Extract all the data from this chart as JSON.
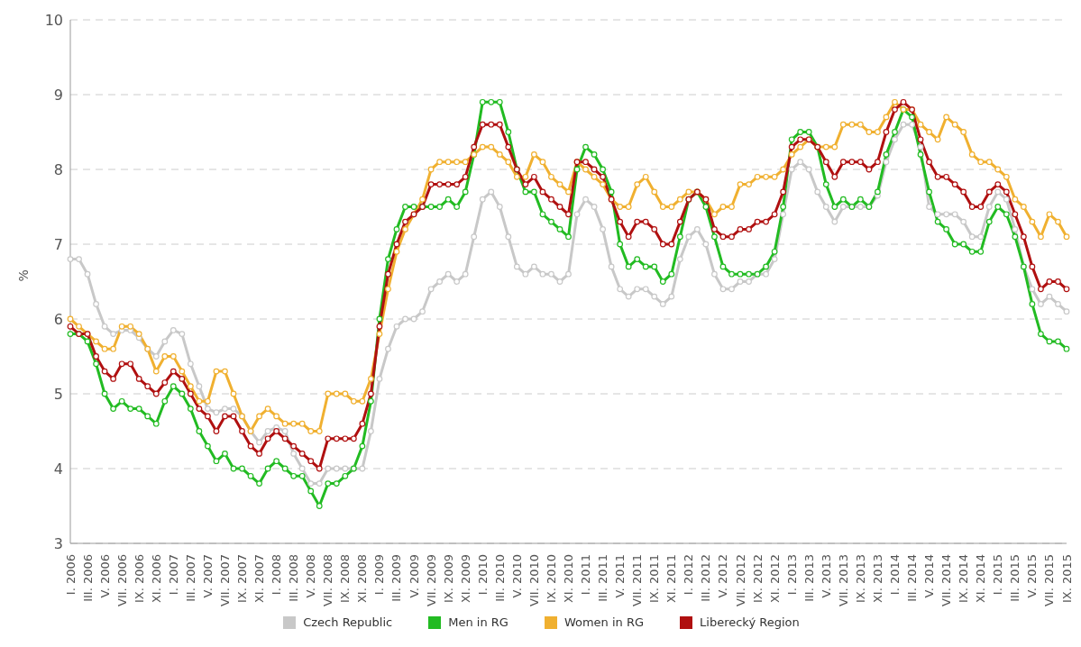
{
  "chart_data": {
    "type": "line",
    "ylabel": "%",
    "ylim": [
      3,
      10
    ],
    "yticks": [
      3,
      4,
      5,
      6,
      7,
      8,
      9,
      10
    ],
    "grid": "y",
    "legend": "bottom",
    "marker": "circle",
    "line_style": "solid",
    "categories": [
      "I. 2006",
      null,
      "III. 2006",
      null,
      "V. 2006",
      null,
      "VII. 2006",
      null,
      "IX. 2006",
      null,
      "XI. 2006",
      null,
      "I. 2007",
      null,
      "III. 2007",
      null,
      "V. 2007",
      null,
      "VII. 2007",
      null,
      "IX. 2007",
      null,
      "XI. 2007",
      null,
      "I. 2008",
      null,
      "III. 2008",
      null,
      "V. 2008",
      null,
      "VII. 2008",
      null,
      "IX. 2008",
      null,
      "XI. 2008",
      null,
      "I. 2009",
      null,
      "III. 2009",
      null,
      "V. 2009",
      null,
      "VII. 2009",
      null,
      "IX. 2009",
      null,
      "XI. 2009",
      null,
      "I. 2010",
      null,
      "III. 2010",
      null,
      "V. 2010",
      null,
      "VII. 2010",
      null,
      "IX. 2010",
      null,
      "XI. 2010",
      null,
      "I. 2011",
      null,
      "III. 2011",
      null,
      "V. 2011",
      null,
      "VII. 2011",
      null,
      "IX. 2011",
      null,
      "XI. 2011",
      null,
      "I. 2012",
      null,
      "III. 2012",
      null,
      "V. 2012",
      null,
      "VII. 2012",
      null,
      "IX. 2012",
      null,
      "XI. 2012",
      null,
      "I. 2013",
      null,
      "III. 2013",
      null,
      "V. 2013",
      null,
      "VII. 2013",
      null,
      "IX. 2013",
      null,
      "XI. 2013",
      null,
      "I. 2014",
      null,
      "III. 2014",
      null,
      "V. 2014",
      null,
      "VII. 2014",
      null,
      "IX. 2014",
      null,
      "XI. 2014",
      null,
      "I. 2015",
      null,
      "III. 2015",
      null,
      "V. 2015",
      null,
      "VII. 2015",
      null,
      "IX. 2015"
    ],
    "series": [
      {
        "name": "Czech Republic",
        "color": "#c8c8c8",
        "values": [
          6.8,
          6.8,
          6.6,
          6.2,
          5.9,
          5.8,
          5.85,
          5.85,
          5.75,
          5.6,
          5.5,
          5.7,
          5.85,
          5.8,
          5.4,
          5.1,
          4.8,
          4.75,
          4.8,
          4.8,
          4.7,
          4.5,
          4.35,
          4.5,
          4.55,
          4.5,
          4.2,
          4.0,
          3.8,
          3.8,
          4.0,
          4.0,
          4.0,
          4.0,
          4.0,
          4.5,
          5.2,
          5.6,
          5.9,
          6.0,
          6.0,
          6.1,
          6.4,
          6.5,
          6.6,
          6.5,
          6.6,
          7.1,
          7.6,
          7.7,
          7.5,
          7.1,
          6.7,
          6.6,
          6.7,
          6.6,
          6.6,
          6.5,
          6.6,
          7.4,
          7.6,
          7.5,
          7.2,
          6.7,
          6.4,
          6.3,
          6.4,
          6.4,
          6.3,
          6.2,
          6.3,
          6.8,
          7.1,
          7.2,
          7.0,
          6.6,
          6.4,
          6.4,
          6.5,
          6.5,
          6.6,
          6.6,
          6.8,
          7.4,
          8.0,
          8.1,
          8.0,
          7.7,
          7.5,
          7.3,
          7.5,
          7.5,
          7.5,
          7.5,
          7.65,
          8.1,
          8.4,
          8.6,
          8.6,
          8.3,
          7.5,
          7.4,
          7.4,
          7.4,
          7.3,
          7.1,
          7.1,
          7.5,
          7.7,
          7.6,
          7.2,
          6.7,
          6.4,
          6.2,
          6.3,
          6.2,
          6.1
        ]
      },
      {
        "name": "Men in RG",
        "color": "#22bb22",
        "values": [
          5.8,
          5.8,
          5.7,
          5.4,
          5.0,
          4.8,
          4.9,
          4.8,
          4.8,
          4.7,
          4.6,
          4.9,
          5.1,
          5.0,
          4.8,
          4.5,
          4.3,
          4.1,
          4.2,
          4.0,
          4.0,
          3.9,
          3.8,
          4.0,
          4.1,
          4.0,
          3.9,
          3.9,
          3.7,
          3.5,
          3.8,
          3.8,
          3.9,
          4.0,
          4.3,
          4.9,
          6.0,
          6.8,
          7.2,
          7.5,
          7.5,
          7.5,
          7.5,
          7.5,
          7.6,
          7.5,
          7.7,
          8.2,
          8.9,
          8.9,
          8.9,
          8.5,
          8.0,
          7.7,
          7.7,
          7.4,
          7.3,
          7.2,
          7.1,
          8.0,
          8.3,
          8.2,
          8.0,
          7.7,
          7.0,
          6.7,
          6.8,
          6.7,
          6.7,
          6.5,
          6.6,
          7.1,
          7.6,
          7.7,
          7.5,
          7.1,
          6.7,
          6.6,
          6.6,
          6.6,
          6.6,
          6.7,
          6.9,
          7.5,
          8.4,
          8.5,
          8.5,
          8.3,
          7.8,
          7.5,
          7.6,
          7.5,
          7.6,
          7.5,
          7.7,
          8.2,
          8.5,
          8.8,
          8.7,
          8.2,
          7.7,
          7.3,
          7.2,
          7.0,
          7.0,
          6.9,
          6.9,
          7.3,
          7.5,
          7.4,
          7.1,
          6.7,
          6.2,
          5.8,
          5.7,
          5.7,
          5.6
        ]
      },
      {
        "name": "Women in RG",
        "color": "#f0b030",
        "values": [
          6.0,
          5.9,
          5.8,
          5.7,
          5.6,
          5.6,
          5.9,
          5.9,
          5.8,
          5.6,
          5.3,
          5.5,
          5.5,
          5.3,
          5.1,
          4.9,
          4.9,
          5.3,
          5.3,
          5.0,
          4.7,
          4.5,
          4.7,
          4.8,
          4.7,
          4.6,
          4.6,
          4.6,
          4.5,
          4.5,
          5.0,
          5.0,
          5.0,
          4.9,
          4.9,
          5.2,
          5.8,
          6.4,
          6.9,
          7.2,
          7.4,
          7.6,
          8.0,
          8.1,
          8.1,
          8.1,
          8.1,
          8.2,
          8.3,
          8.3,
          8.2,
          8.1,
          7.9,
          7.9,
          8.2,
          8.1,
          7.9,
          7.8,
          7.7,
          8.1,
          8.0,
          7.9,
          7.8,
          7.6,
          7.5,
          7.5,
          7.8,
          7.9,
          7.7,
          7.5,
          7.5,
          7.6,
          7.7,
          7.7,
          7.6,
          7.4,
          7.5,
          7.5,
          7.8,
          7.8,
          7.9,
          7.9,
          7.9,
          8.0,
          8.2,
          8.3,
          8.4,
          8.3,
          8.3,
          8.3,
          8.6,
          8.6,
          8.6,
          8.5,
          8.5,
          8.7,
          8.9,
          8.8,
          8.8,
          8.6,
          8.5,
          8.4,
          8.7,
          8.6,
          8.5,
          8.2,
          8.1,
          8.1,
          8.0,
          7.9,
          7.6,
          7.5,
          7.3,
          7.1,
          7.4,
          7.3,
          7.1
        ]
      },
      {
        "name": "Liberecký Region",
        "color": "#b01010",
        "values": [
          5.9,
          5.8,
          5.8,
          5.5,
          5.3,
          5.2,
          5.4,
          5.4,
          5.2,
          5.1,
          5.0,
          5.15,
          5.3,
          5.2,
          5.0,
          4.8,
          4.7,
          4.5,
          4.7,
          4.7,
          4.5,
          4.3,
          4.2,
          4.4,
          4.5,
          4.4,
          4.3,
          4.2,
          4.1,
          4.0,
          4.4,
          4.4,
          4.4,
          4.4,
          4.6,
          5.0,
          5.9,
          6.6,
          7.0,
          7.3,
          7.4,
          7.5,
          7.8,
          7.8,
          7.8,
          7.8,
          7.9,
          8.3,
          8.6,
          8.6,
          8.6,
          8.3,
          8.0,
          7.8,
          7.9,
          7.7,
          7.6,
          7.5,
          7.4,
          8.1,
          8.1,
          8.0,
          7.9,
          7.6,
          7.3,
          7.1,
          7.3,
          7.3,
          7.2,
          7.0,
          7.0,
          7.3,
          7.6,
          7.7,
          7.6,
          7.2,
          7.1,
          7.1,
          7.2,
          7.2,
          7.3,
          7.3,
          7.4,
          7.7,
          8.3,
          8.4,
          8.4,
          8.3,
          8.1,
          7.9,
          8.1,
          8.1,
          8.1,
          8.0,
          8.1,
          8.5,
          8.8,
          8.9,
          8.8,
          8.4,
          8.1,
          7.9,
          7.9,
          7.8,
          7.7,
          7.5,
          7.5,
          7.7,
          7.8,
          7.7,
          7.4,
          7.1,
          6.7,
          6.4,
          6.5,
          6.5,
          6.4
        ]
      }
    ]
  }
}
